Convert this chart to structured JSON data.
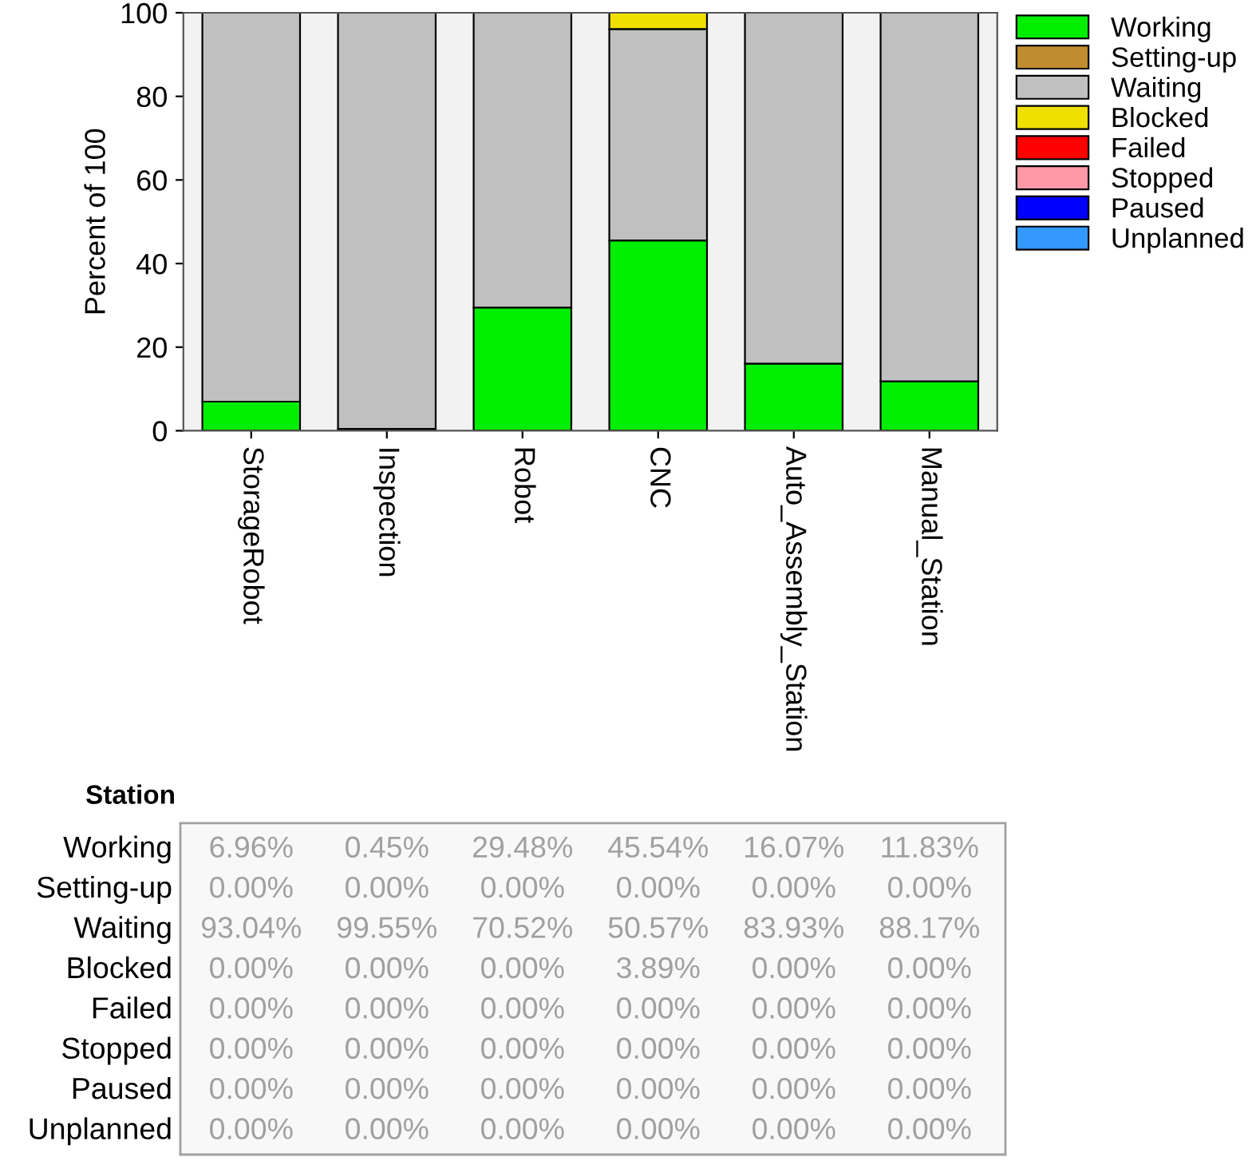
{
  "chart_data": {
    "type": "bar",
    "stacked": true,
    "ylabel": "Percent of 100",
    "xlabel": "Station",
    "categories": [
      "StorageRobot",
      "Inspection",
      "Robot",
      "CNC",
      "Auto_Assembly_Station",
      "Manual_Station"
    ],
    "ylim": [
      0,
      100
    ],
    "yticks": [
      0,
      20,
      40,
      60,
      80,
      100
    ],
    "grid": false,
    "legend": "top right",
    "series": [
      {
        "name": "Working",
        "color": "#00ee00",
        "values": [
          6.96,
          0.45,
          29.48,
          45.54,
          16.07,
          11.83
        ],
        "value_labels": [
          "6.96%",
          "0.45%",
          "29.48%",
          "45.54%",
          "16.07%",
          "11.83%"
        ]
      },
      {
        "name": "Setting-up",
        "color": "#c08c30",
        "values": [
          0,
          0,
          0,
          0,
          0,
          0
        ],
        "value_labels": [
          "0.00%",
          "0.00%",
          "0.00%",
          "0.00%",
          "0.00%",
          "0.00%"
        ]
      },
      {
        "name": "Waiting",
        "color": "#c0c0c0",
        "values": [
          93.04,
          99.55,
          70.52,
          50.57,
          83.93,
          88.17
        ],
        "value_labels": [
          "93.04%",
          "99.55%",
          "70.52%",
          "50.57%",
          "83.93%",
          "88.17%"
        ]
      },
      {
        "name": "Blocked",
        "color": "#f0e000",
        "values": [
          0,
          0,
          0,
          3.89,
          0,
          0
        ],
        "value_labels": [
          "0.00%",
          "0.00%",
          "0.00%",
          "3.89%",
          "0.00%",
          "0.00%"
        ]
      },
      {
        "name": "Failed",
        "color": "#ff0000",
        "values": [
          0,
          0,
          0,
          0,
          0,
          0
        ],
        "value_labels": [
          "0.00%",
          "0.00%",
          "0.00%",
          "0.00%",
          "0.00%",
          "0.00%"
        ]
      },
      {
        "name": "Stopped",
        "color": "#ff99a8",
        "values": [
          0,
          0,
          0,
          0,
          0,
          0
        ],
        "value_labels": [
          "0.00%",
          "0.00%",
          "0.00%",
          "0.00%",
          "0.00%",
          "0.00%"
        ]
      },
      {
        "name": "Paused",
        "color": "#0000ff",
        "values": [
          0,
          0,
          0,
          0,
          0,
          0
        ],
        "value_labels": [
          "0.00%",
          "0.00%",
          "0.00%",
          "0.00%",
          "0.00%",
          "0.00%"
        ]
      },
      {
        "name": "Unplanned",
        "color": "#3399ff",
        "values": [
          0,
          0,
          0,
          0,
          0,
          0
        ],
        "value_labels": [
          "0.00%",
          "0.00%",
          "0.00%",
          "0.00%",
          "0.00%",
          "0.00%"
        ]
      }
    ]
  }
}
